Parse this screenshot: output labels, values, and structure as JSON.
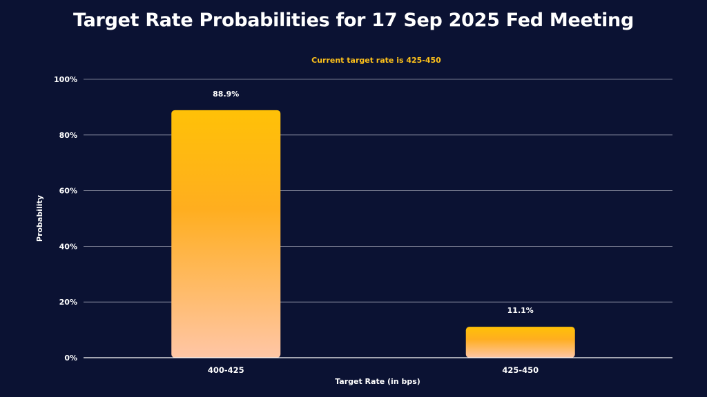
{
  "chart_data": {
    "type": "bar",
    "title": "Target Rate Probabilities for 17 Sep 2025 Fed Meeting",
    "subtitle": "Current target rate is 425-450",
    "xlabel": "Target Rate (in bps)",
    "ylabel": "Probability",
    "categories": [
      "400-425",
      "425-450"
    ],
    "values": [
      88.9,
      11.1
    ],
    "value_labels": [
      "88.9%",
      "11.1%"
    ],
    "ylim": [
      0,
      100
    ],
    "yticks": [
      0,
      20,
      40,
      60,
      80,
      100
    ],
    "ytick_labels": [
      "0%",
      "20%",
      "40%",
      "60%",
      "80%",
      "100%"
    ],
    "grid": true,
    "colors": {
      "background": "#0b1233",
      "bar_top": "#ffc107",
      "bar_mid": "#ffae1f",
      "bar_bottom": "#ffc6a6",
      "gridline": "#c9ccd8",
      "subtitle": "#ffc21a"
    }
  }
}
